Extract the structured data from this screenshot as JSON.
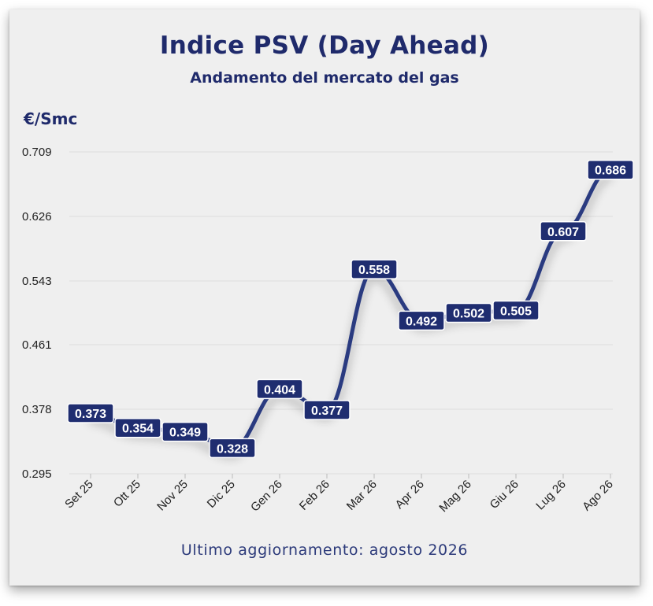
{
  "header": {
    "title": "Indice PSV (Day Ahead)",
    "subtitle": "Andamento del mercato del gas",
    "unit": "€/Smc"
  },
  "footer": {
    "text": "Ultimo aggiornamento: agosto 2026"
  },
  "colors": {
    "line": "#2a3a80",
    "label_bg": "#1f2d70",
    "label_text": "#ffffff",
    "title": "#1f2a6b",
    "card_bg": "#efefef",
    "grid": "#dcdcdc"
  },
  "chart_data": {
    "type": "line",
    "title": "Indice PSV (Day Ahead)",
    "subtitle": "Andamento del mercato del gas",
    "ylabel": "€/Smc",
    "xlabel": "",
    "categories": [
      "Set 25",
      "Ott 25",
      "Nov 25",
      "Dic 25",
      "Gen 26",
      "Feb 26",
      "Mar 26",
      "Apr 26",
      "Mag 26",
      "Giu 26",
      "Lug 26",
      "Ago 26"
    ],
    "series": [
      {
        "values": [
          0.373,
          0.354,
          0.349,
          0.328,
          0.404,
          0.377,
          0.558,
          0.492,
          0.502,
          0.505,
          0.607,
          0.686
        ]
      }
    ],
    "data_labels": [
      "0.373",
      "0.354",
      "0.349",
      "0.328",
      "0.404",
      "0.377",
      "0.558",
      "0.492",
      "0.502",
      "0.505",
      "0.607",
      "0.686"
    ],
    "yticks": [
      "0.295",
      "0.378",
      "0.461",
      "0.543",
      "0.626",
      "0.709"
    ],
    "ylim": [
      0.295,
      0.709
    ],
    "grid": true,
    "legend": "none"
  }
}
